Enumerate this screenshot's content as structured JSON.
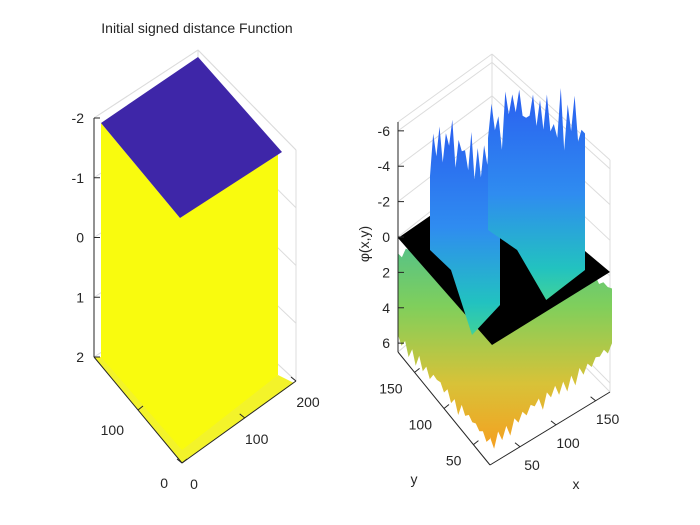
{
  "colors": {
    "background": "#ffffff",
    "axis_line": "#262626",
    "grid_line": "#dcdcdc",
    "sdf_inside": "#3e26a8",
    "sdf_outside": "#f9fb0e",
    "zero_plane": "#000000",
    "parula_low": "#2f6cf0",
    "parula_mid": "#1fc6a8",
    "parula_high": "#f5c02f"
  },
  "chart_data": [
    {
      "type": "surface3d",
      "title": "Initial signed distance Function",
      "xlabel": "",
      "ylabel": "",
      "zlabel": "",
      "z_direction": "reversed",
      "zlim": [
        -2,
        2
      ],
      "z_ticks": [
        "-2",
        "-1",
        "0",
        "1",
        "2"
      ],
      "x_ticks": [
        "0",
        "100",
        "200"
      ],
      "y_ticks": [
        "0",
        "100"
      ],
      "surface": {
        "inside_value": -2,
        "outside_value": 2,
        "inside_color": "#3e26a8",
        "outside_color": "#f9fb0e"
      }
    },
    {
      "type": "surface3d",
      "title": "",
      "xlabel": "x",
      "ylabel": "y",
      "zlabel": "φ(x,y)",
      "z_direction": "reversed",
      "zlim": [
        -6.5,
        6.5
      ],
      "z_ticks": [
        "-6",
        "-4",
        "-2",
        "0",
        "2",
        "4",
        "6"
      ],
      "x_ticks": [
        "50",
        "100",
        "150"
      ],
      "y_ticks": [
        "50",
        "100",
        "150"
      ],
      "zero_plane": {
        "z": 0,
        "color": "#000000"
      },
      "peaks": [
        {
          "name": "left ridge",
          "approx_min_z": -5
        },
        {
          "name": "right ridge",
          "approx_min_z": -6
        }
      ],
      "outside_oscillation_z": [
        2.5,
        6
      ]
    }
  ]
}
